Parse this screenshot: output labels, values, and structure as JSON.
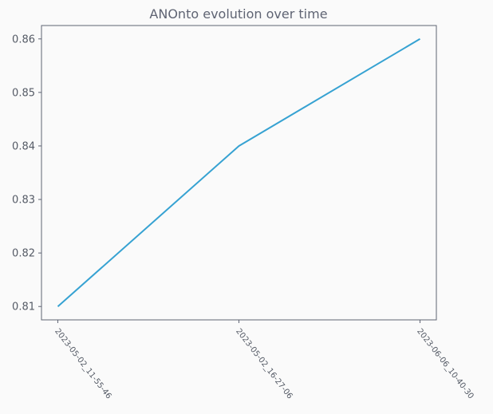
{
  "chart_data": {
    "type": "line",
    "title": "ANOnto evolution over time",
    "xlabel": "",
    "ylabel": "",
    "categories": [
      "2023-05-02_11-55-46",
      "2023-05-02_16-27-06",
      "2023-06-06_10-40-30"
    ],
    "series": [
      {
        "values": [
          0.81,
          0.84,
          0.86
        ]
      }
    ],
    "yticks": [
      "0.81",
      "0.82",
      "0.83",
      "0.84",
      "0.85",
      "0.86"
    ],
    "ylim": [
      0.8075,
      0.8625
    ],
    "grid": false,
    "colors": {
      "line": "#36a2d2",
      "frame": "#5f6473",
      "background": "#fafafa",
      "text": "#555b66"
    }
  }
}
